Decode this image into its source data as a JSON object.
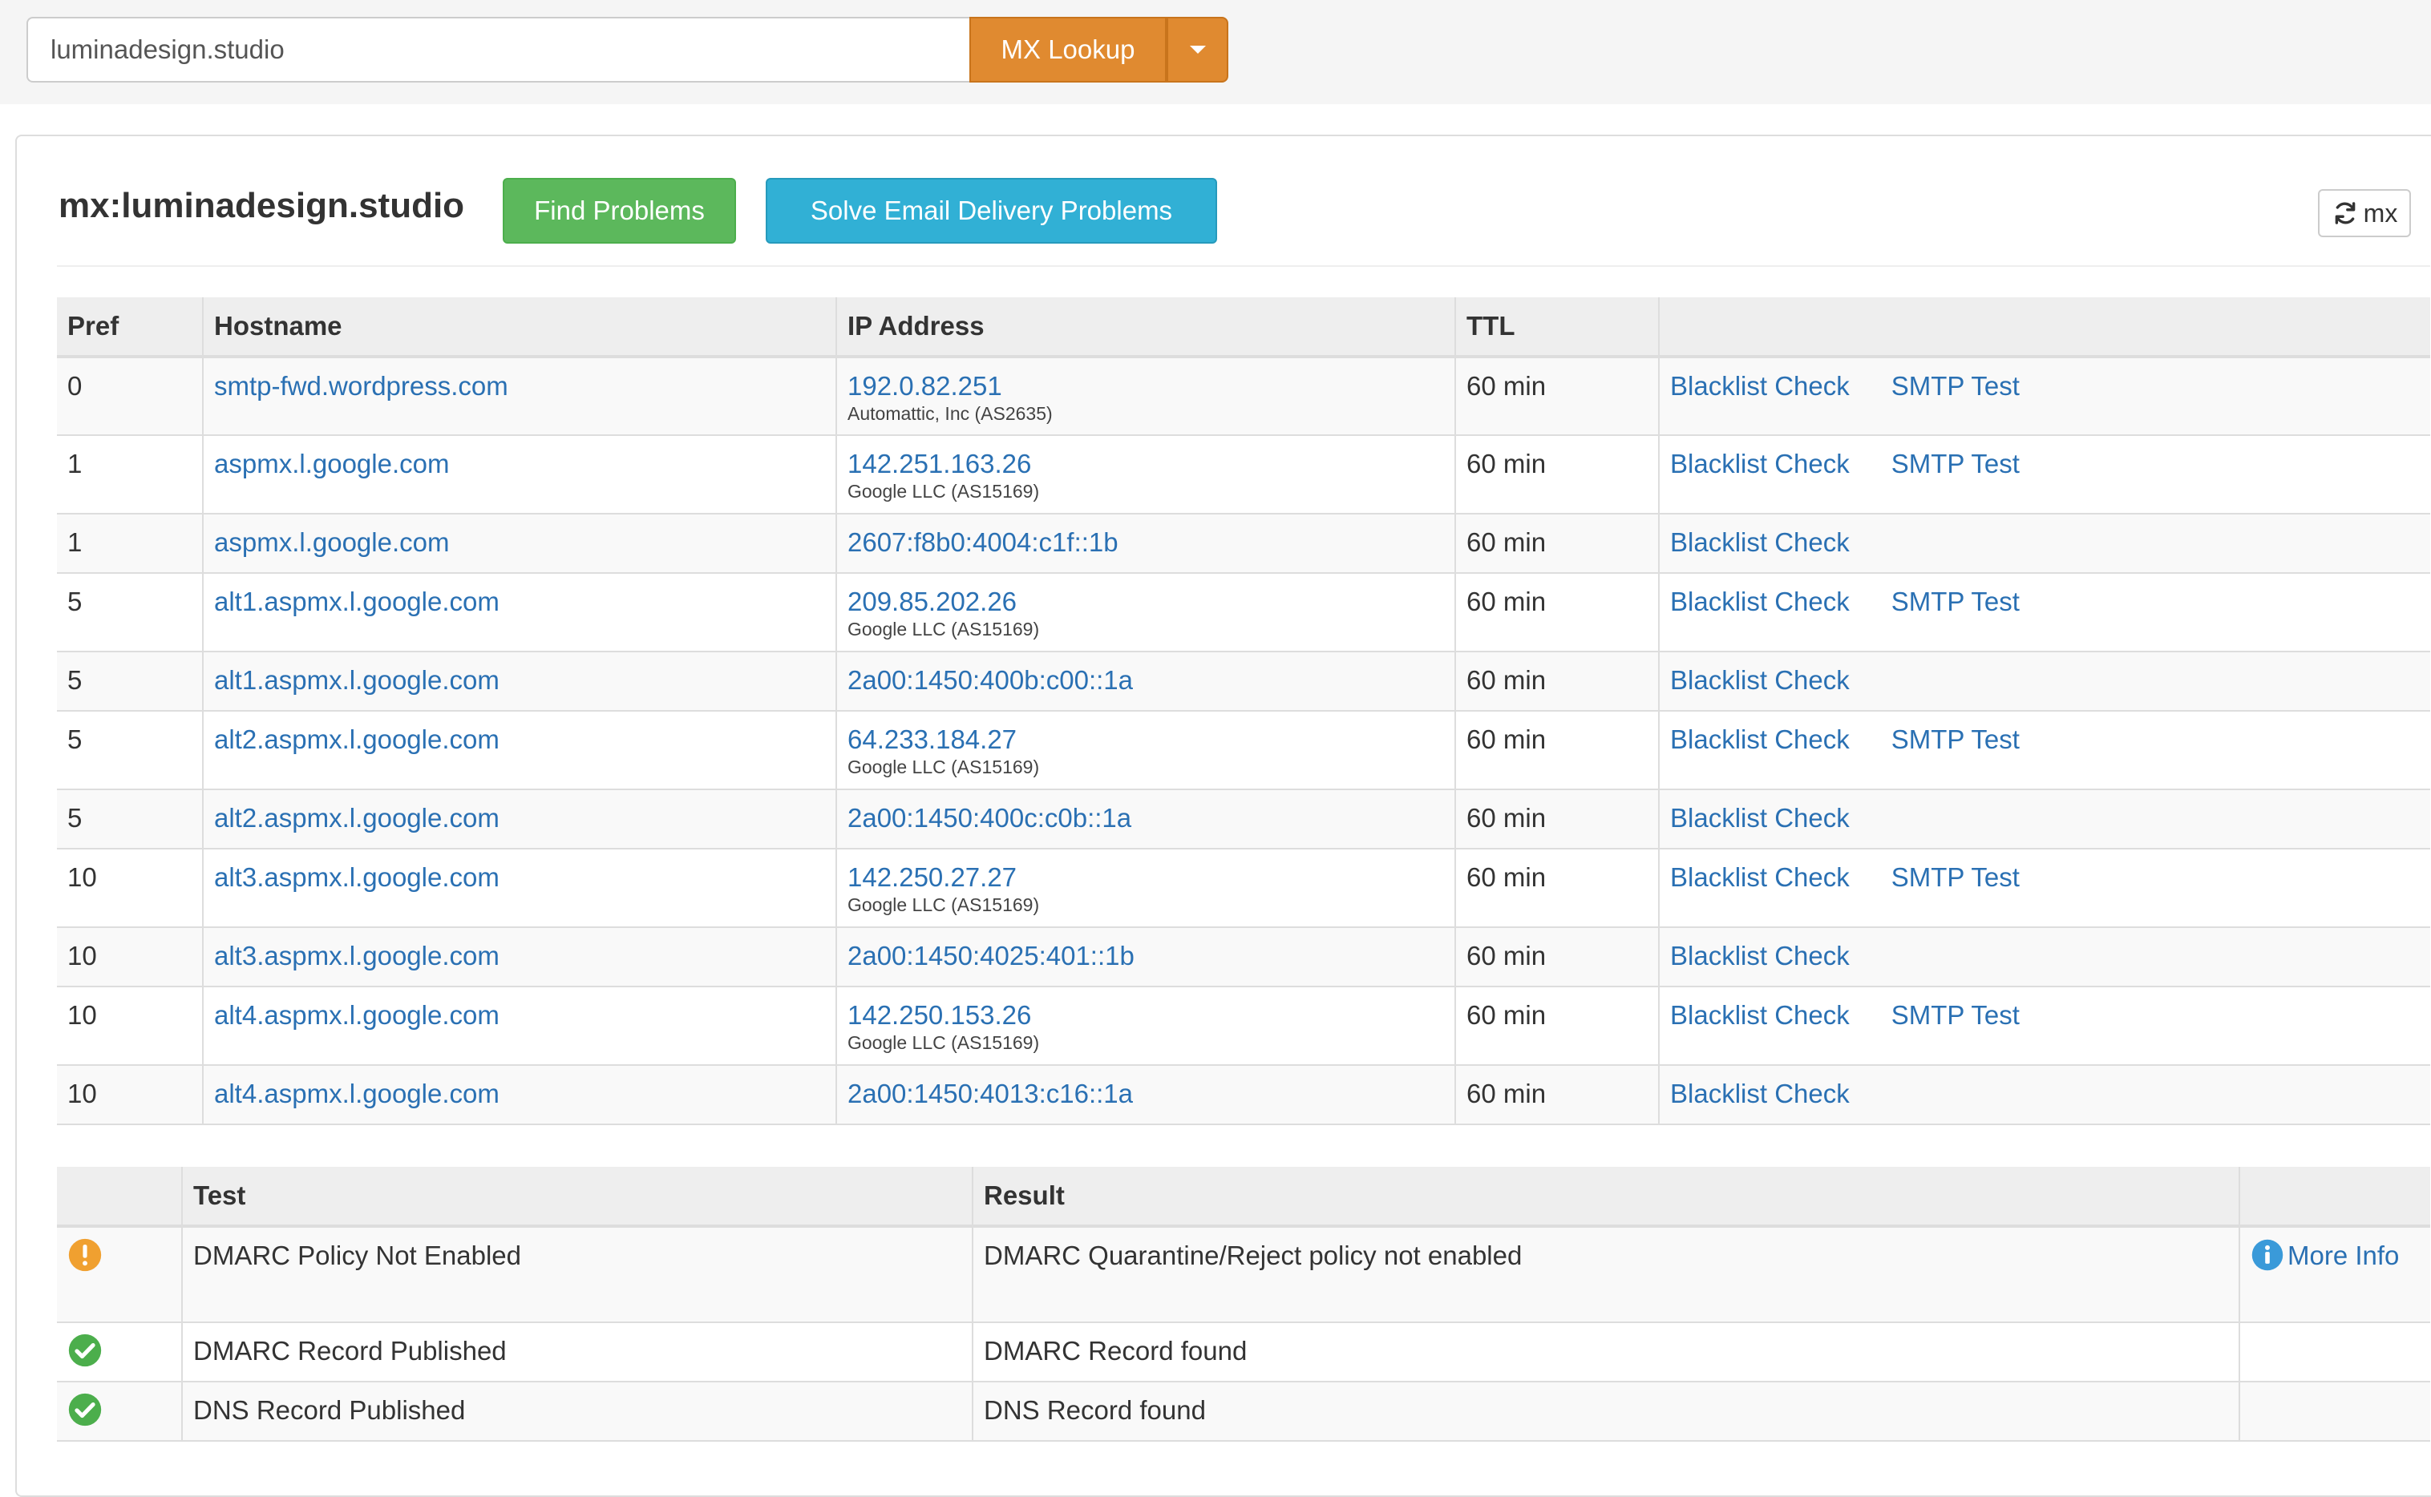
{
  "search": {
    "value": "luminadesign.studio",
    "button_label": "MX Lookup"
  },
  "panel": {
    "title": "mx:luminadesign.studio",
    "find_problems_label": "Find Problems",
    "solve_label": "Solve Email Delivery Problems",
    "refresh_label": "mx"
  },
  "mx_table": {
    "headers": [
      "Pref",
      "Hostname",
      "IP Address",
      "TTL",
      ""
    ],
    "rows": [
      {
        "pref": "0",
        "hostname": "smtp-fwd.wordpress.com",
        "ip": "192.0.82.251",
        "asn": "Automattic, Inc (AS2635)",
        "ttl": "60 min",
        "blacklist": "Blacklist Check",
        "smtp": "SMTP Test"
      },
      {
        "pref": "1",
        "hostname": "aspmx.l.google.com",
        "ip": "142.251.163.26",
        "asn": "Google LLC (AS15169)",
        "ttl": "60 min",
        "blacklist": "Blacklist Check",
        "smtp": "SMTP Test"
      },
      {
        "pref": "1",
        "hostname": "aspmx.l.google.com",
        "ip": "2607:f8b0:4004:c1f::1b",
        "ttl": "60 min",
        "blacklist": "Blacklist Check"
      },
      {
        "pref": "5",
        "hostname": "alt1.aspmx.l.google.com",
        "ip": "209.85.202.26",
        "asn": "Google LLC (AS15169)",
        "ttl": "60 min",
        "blacklist": "Blacklist Check",
        "smtp": "SMTP Test"
      },
      {
        "pref": "5",
        "hostname": "alt1.aspmx.l.google.com",
        "ip": "2a00:1450:400b:c00::1a",
        "ttl": "60 min",
        "blacklist": "Blacklist Check"
      },
      {
        "pref": "5",
        "hostname": "alt2.aspmx.l.google.com",
        "ip": "64.233.184.27",
        "asn": "Google LLC (AS15169)",
        "ttl": "60 min",
        "blacklist": "Blacklist Check",
        "smtp": "SMTP Test"
      },
      {
        "pref": "5",
        "hostname": "alt2.aspmx.l.google.com",
        "ip": "2a00:1450:400c:c0b::1a",
        "ttl": "60 min",
        "blacklist": "Blacklist Check"
      },
      {
        "pref": "10",
        "hostname": "alt3.aspmx.l.google.com",
        "ip": "142.250.27.27",
        "asn": "Google LLC (AS15169)",
        "ttl": "60 min",
        "blacklist": "Blacklist Check",
        "smtp": "SMTP Test"
      },
      {
        "pref": "10",
        "hostname": "alt3.aspmx.l.google.com",
        "ip": "2a00:1450:4025:401::1b",
        "ttl": "60 min",
        "blacklist": "Blacklist Check"
      },
      {
        "pref": "10",
        "hostname": "alt4.aspmx.l.google.com",
        "ip": "142.250.153.26",
        "asn": "Google LLC (AS15169)",
        "ttl": "60 min",
        "blacklist": "Blacklist Check",
        "smtp": "SMTP Test"
      },
      {
        "pref": "10",
        "hostname": "alt4.aspmx.l.google.com",
        "ip": "2a00:1450:4013:c16::1a",
        "ttl": "60 min",
        "blacklist": "Blacklist Check"
      }
    ]
  },
  "test_table": {
    "headers": [
      "",
      "Test",
      "Result",
      ""
    ],
    "rows": [
      {
        "status": "warning",
        "status_icon": "warning-icon",
        "test": "DMARC Policy Not Enabled",
        "result": "DMARC Quarantine/Reject policy not enabled",
        "more_info": "More Info"
      },
      {
        "status": "ok",
        "status_icon": "check-circle-icon",
        "test": "DMARC Record Published",
        "result": "DMARC Record found"
      },
      {
        "status": "ok",
        "status_icon": "check-circle-icon",
        "test": "DNS Record Published",
        "result": "DNS Record found"
      }
    ]
  },
  "colors": {
    "lookup_button": "#e08a30",
    "find_problems_button": "#5cb85c",
    "solve_button": "#31b0d5",
    "link": "#2a70b3",
    "warning": "#f0a030",
    "ok": "#4cae4c",
    "info": "#3a9ad9"
  }
}
